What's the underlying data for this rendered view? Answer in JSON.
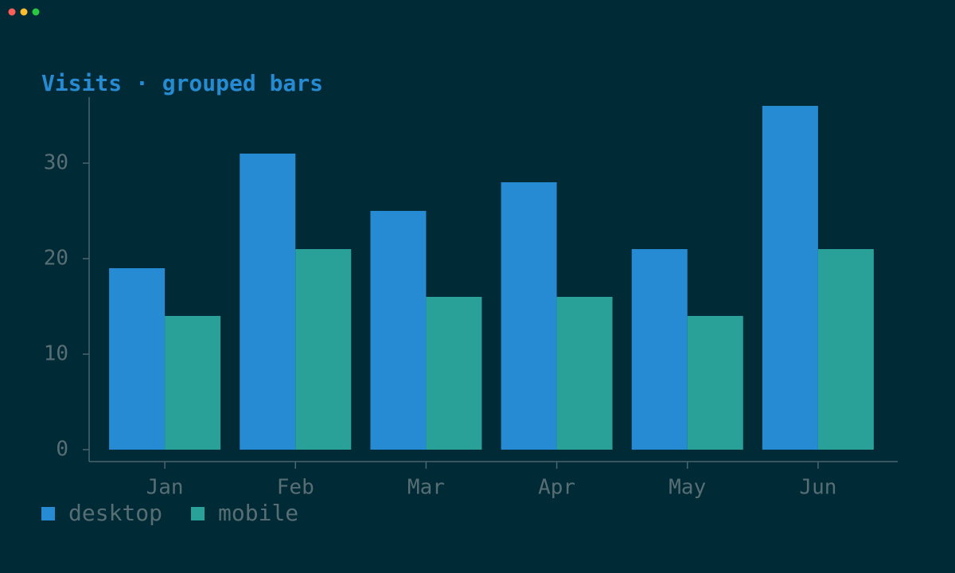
{
  "chart_data": {
    "type": "bar",
    "title": "Visits · grouped bars",
    "categories": [
      "Jan",
      "Feb",
      "Mar",
      "Apr",
      "May",
      "Jun"
    ],
    "series": [
      {
        "name": "desktop",
        "color": "#268bd2",
        "values": [
          19,
          31,
          25,
          28,
          21,
          36
        ]
      },
      {
        "name": "mobile",
        "color": "#2aa198",
        "values": [
          14,
          21,
          16,
          16,
          14,
          21
        ]
      }
    ],
    "ylim": [
      0,
      37
    ],
    "yticks": [
      0,
      10,
      20,
      30
    ]
  }
}
